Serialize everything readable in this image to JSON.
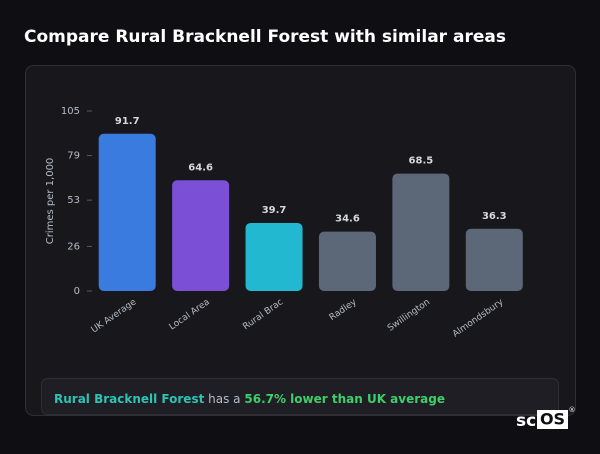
{
  "chart_data": {
    "type": "bar",
    "title": "Compare Rural Bracknell Forest with similar areas",
    "y_label": "Crimes per 1,000",
    "categories": [
      "UK Average",
      "Local Area",
      "Rural Brac",
      "Radley",
      "Swillington",
      "Almondsbury"
    ],
    "values": [
      91.7,
      64.6,
      39.7,
      34.6,
      68.5,
      36.3
    ],
    "colors": [
      "#3a7be0",
      "#7b4fd6",
      "#22b8cf",
      "#5c6778",
      "#5c6778",
      "#5c6778"
    ],
    "ylim": [
      0,
      105
    ],
    "yticks": [
      0,
      26,
      53,
      79,
      105
    ],
    "grid": false
  },
  "summary": {
    "area": "Rural Bracknell Forest",
    "connector": "has a",
    "comparison": "56.7% lower than UK average"
  },
  "logo": {
    "part1": "sc",
    "part2": "OS",
    "mark": "®"
  }
}
